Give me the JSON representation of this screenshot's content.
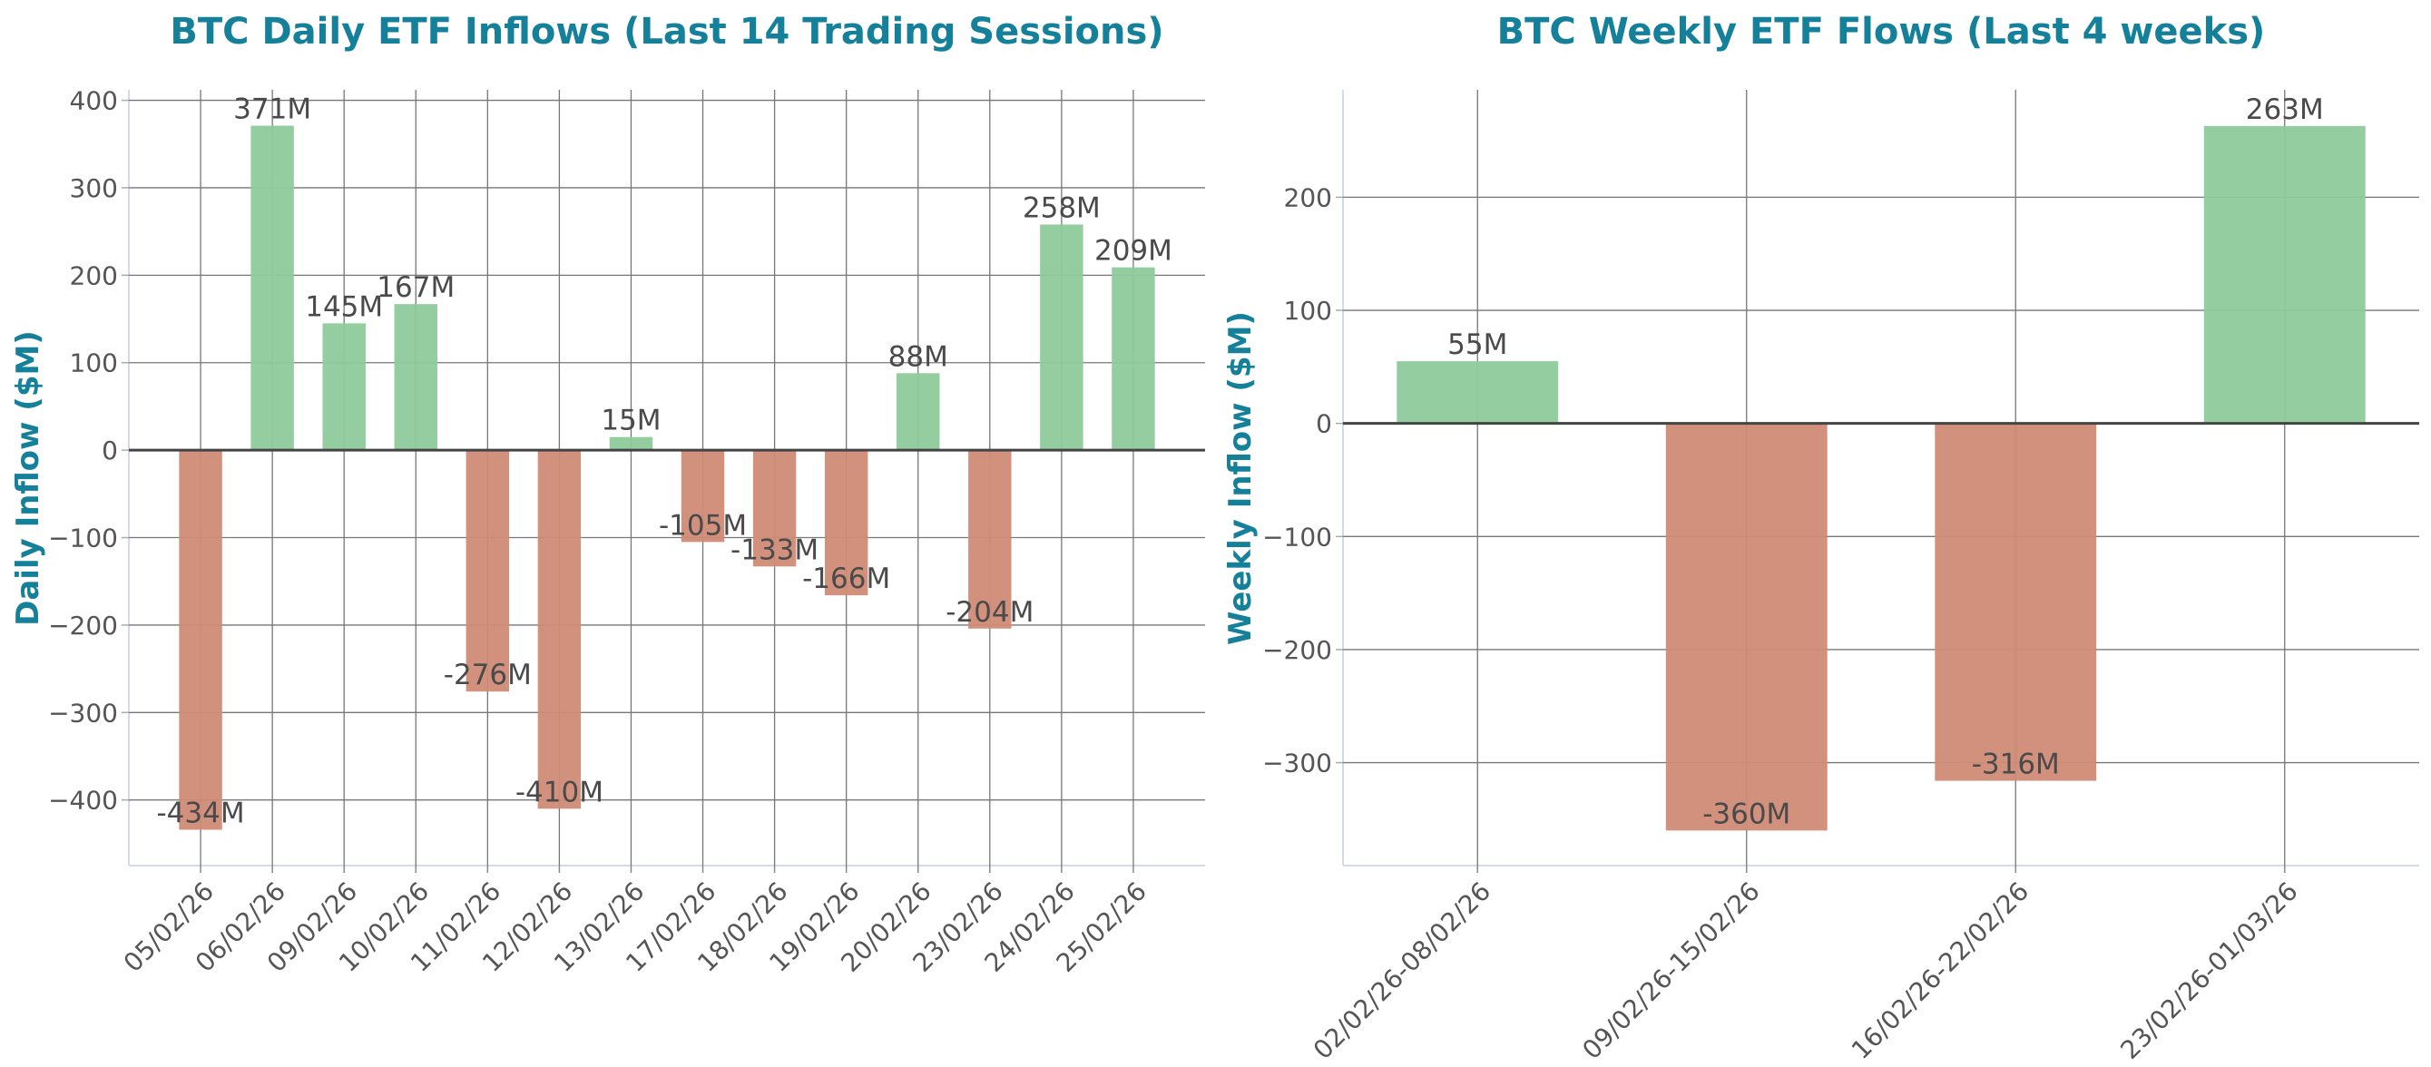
{
  "chart_data": [
    {
      "type": "bar",
      "title": "BTC Daily ETF Inflows (Last 14 Trading Sessions)",
      "xlabel": "",
      "ylabel": "Daily Inflow ($M)",
      "categories": [
        "05/02/26",
        "06/02/26",
        "09/02/26",
        "10/02/26",
        "11/02/26",
        "12/02/26",
        "13/02/26",
        "17/02/26",
        "18/02/26",
        "19/02/26",
        "20/02/26",
        "23/02/26",
        "24/02/26",
        "25/02/26"
      ],
      "values": [
        -434,
        371,
        145,
        167,
        -276,
        -410,
        15,
        -105,
        -133,
        -166,
        88,
        -204,
        258,
        209
      ],
      "labels": [
        "-434M",
        "371M",
        "145M",
        "167M",
        "-276M",
        "-410M",
        "15M",
        "-105M",
        "-133M",
        "-166M",
        "88M",
        "-204M",
        "258M",
        "209M"
      ],
      "ylim": [
        -475,
        412
      ],
      "yticks": [
        -400,
        -300,
        -200,
        -100,
        0,
        100,
        200,
        300,
        400
      ],
      "ytick_labels": [
        "−400",
        "−300",
        "−200",
        "−100",
        "0",
        "100",
        "200",
        "300",
        "400"
      ],
      "grid": true,
      "positive_color": "#8ecb9b",
      "negative_color": "#d08b76"
    },
    {
      "type": "bar",
      "title": "BTC Weekly ETF Flows (Last 4 weeks)",
      "xlabel": "",
      "ylabel": "Weekly Inflow ($M)",
      "categories": [
        "02/02/26-08/02/26",
        "09/02/26-15/02/26",
        "16/02/26-22/02/26",
        "23/02/26-01/03/26"
      ],
      "values": [
        55,
        -360,
        -316,
        263
      ],
      "labels": [
        "55M",
        "-360M",
        "-316M",
        "263M"
      ],
      "ylim": [
        -391,
        295
      ],
      "yticks": [
        -300,
        -200,
        -100,
        0,
        100,
        200
      ],
      "ytick_labels": [
        "−300",
        "−200",
        "−100",
        "0",
        "100",
        "200"
      ],
      "grid": true,
      "positive_color": "#8ecb9b",
      "negative_color": "#d08b76"
    }
  ]
}
